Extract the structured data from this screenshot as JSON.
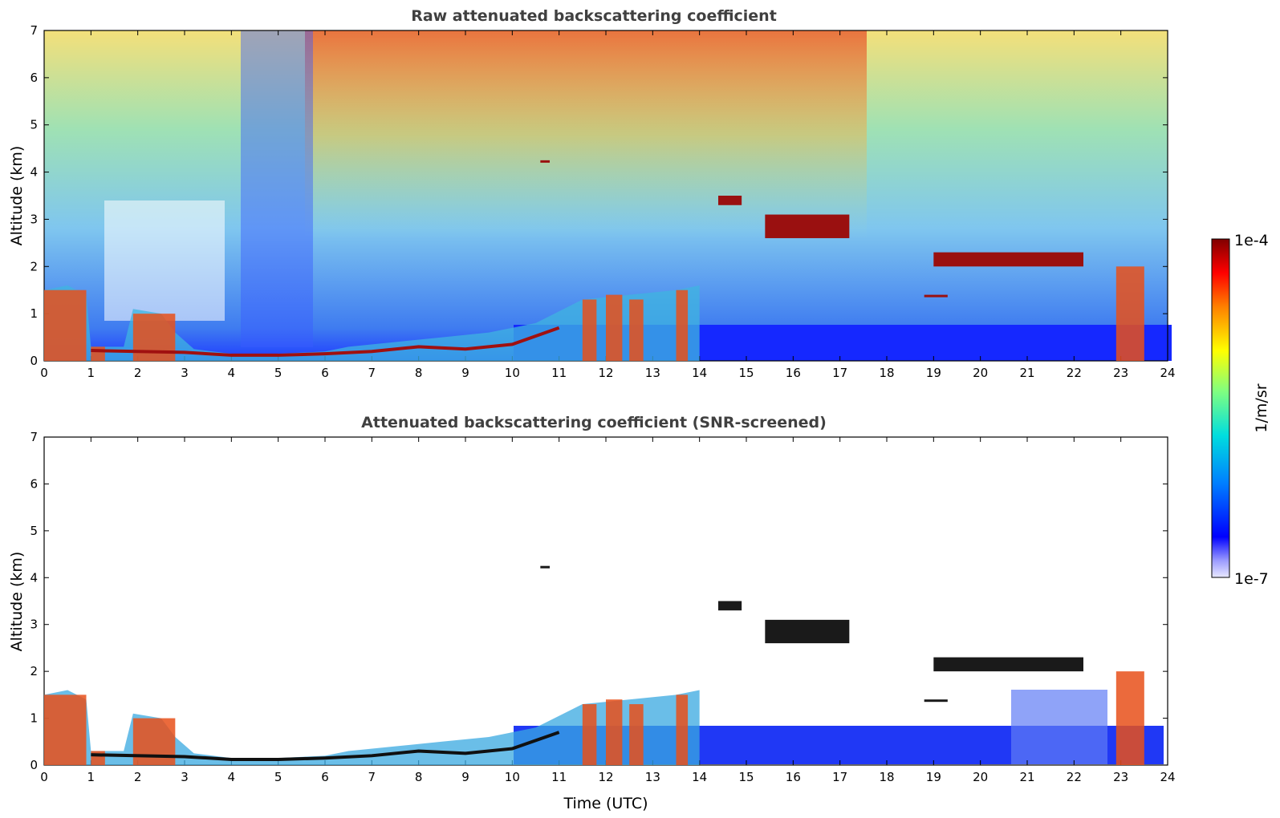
{
  "chart_data": [
    {
      "type": "heatmap",
      "title": "Raw attenuated backscattering coefficient",
      "xlabel": "",
      "ylabel": "Altitude (km)",
      "xlim": [
        0,
        24
      ],
      "ylim": [
        0,
        7
      ],
      "xticks": [
        "0",
        "1",
        "2",
        "3",
        "4",
        "5",
        "6",
        "7",
        "8",
        "9",
        "10",
        "11",
        "12",
        "13",
        "14",
        "15",
        "16",
        "17",
        "18",
        "19",
        "20",
        "21",
        "22",
        "23",
        "24"
      ],
      "yticks": [
        "0",
        "1",
        "2",
        "3",
        "4",
        "5",
        "6",
        "7"
      ],
      "screened": false,
      "layers": [
        {
          "x_start": 14.4,
          "x_end": 14.9,
          "y_start": 3.3,
          "y_end": 3.5
        },
        {
          "x_start": 15.4,
          "x_end": 17.2,
          "y_start": 2.6,
          "y_end": 3.1
        },
        {
          "x_start": 19.0,
          "x_end": 22.2,
          "y_start": 2.0,
          "y_end": 2.3
        },
        {
          "x_start": 18.8,
          "x_end": 19.3,
          "y_start": 1.35,
          "y_end": 1.4
        },
        {
          "x_start": 10.6,
          "x_end": 10.8,
          "y_start": 4.2,
          "y_end": 4.25
        }
      ]
    },
    {
      "type": "heatmap",
      "title": "Attenuated backscattering coefficient (SNR-screened)",
      "xlabel": "Time (UTC)",
      "ylabel": "Altitude (km)",
      "xlim": [
        0,
        24
      ],
      "ylim": [
        0,
        7
      ],
      "xticks": [
        "0",
        "1",
        "2",
        "3",
        "4",
        "5",
        "6",
        "7",
        "8",
        "9",
        "10",
        "11",
        "12",
        "13",
        "14",
        "15",
        "16",
        "17",
        "18",
        "19",
        "20",
        "21",
        "22",
        "23",
        "24"
      ],
      "yticks": [
        "0",
        "1",
        "2",
        "3",
        "4",
        "5",
        "6",
        "7"
      ],
      "screened": true,
      "layers": [
        {
          "x_start": 14.4,
          "x_end": 14.9,
          "y_start": 3.3,
          "y_end": 3.5
        },
        {
          "x_start": 15.4,
          "x_end": 17.2,
          "y_start": 2.6,
          "y_end": 3.1
        },
        {
          "x_start": 19.0,
          "x_end": 22.2,
          "y_start": 2.0,
          "y_end": 2.3
        },
        {
          "x_start": 18.8,
          "x_end": 19.3,
          "y_start": 1.35,
          "y_end": 1.4
        },
        {
          "x_start": 10.6,
          "x_end": 10.8,
          "y_start": 4.2,
          "y_end": 4.25
        }
      ]
    }
  ],
  "colorbar": {
    "label": "1/m/sr",
    "max_label": "1e-4",
    "min_label": "1e-7",
    "scale": "log",
    "range": [
      1e-07,
      0.0001
    ],
    "colormap": [
      "#e8e8ff",
      "#0000ff",
      "#0080ff",
      "#00e0e0",
      "#80ff80",
      "#ffff00",
      "#ff8000",
      "#ff0000",
      "#800000"
    ]
  }
}
